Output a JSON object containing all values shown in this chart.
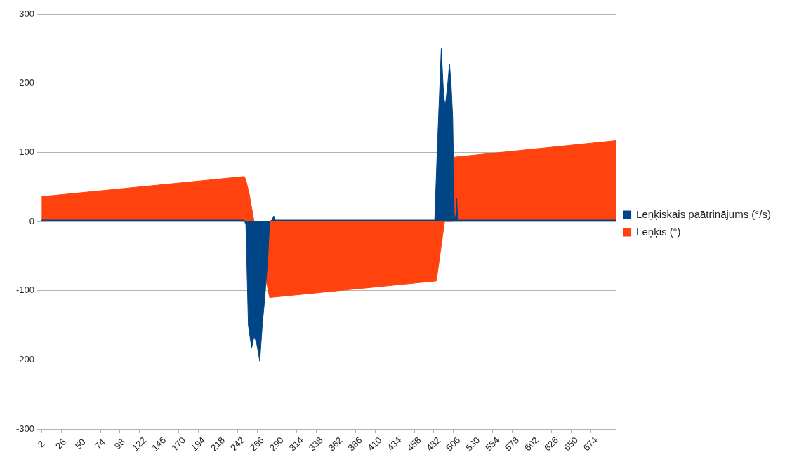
{
  "chart_data": {
    "type": "area",
    "xlim": [
      1,
      705
    ],
    "xticks": [
      2,
      26,
      50,
      74,
      98,
      122,
      146,
      170,
      194,
      218,
      242,
      266,
      290,
      314,
      338,
      362,
      386,
      410,
      434,
      458,
      482,
      506,
      530,
      554,
      578,
      602,
      626,
      650,
      674
    ],
    "ylim": [
      -300,
      300
    ],
    "yticks": [
      -300,
      -200,
      -100,
      0,
      100,
      200,
      300
    ],
    "grid": "y",
    "legend": "right",
    "series": [
      {
        "name": "Leņķiskais paātrinājums (°/s)",
        "color": "#004586",
        "x": [
          2,
          250,
          252,
          255,
          259,
          262,
          265,
          269,
          272,
          275,
          279,
          281,
          284,
          286,
          288,
          483,
          486,
          491,
          494,
          496,
          499,
          501,
          503,
          505,
          507,
          509,
          510,
          511,
          705
        ],
        "values": [
          2,
          2,
          -5,
          -150,
          -183,
          -166,
          -175,
          -202,
          -150,
          -112,
          -50,
          0,
          2,
          8,
          2,
          2,
          100,
          250,
          180,
          168,
          200,
          228,
          200,
          150,
          2,
          10,
          34,
          2,
          2
        ]
      },
      {
        "name": "Leņķis (°)",
        "color": "#ff420e",
        "x": [
          2,
          250,
          252,
          256,
          262,
          281,
          485,
          495,
          505,
          507,
          705
        ],
        "values": [
          36,
          65,
          60,
          40,
          0,
          -110,
          -86,
          0,
          0,
          93,
          117
        ]
      }
    ]
  }
}
